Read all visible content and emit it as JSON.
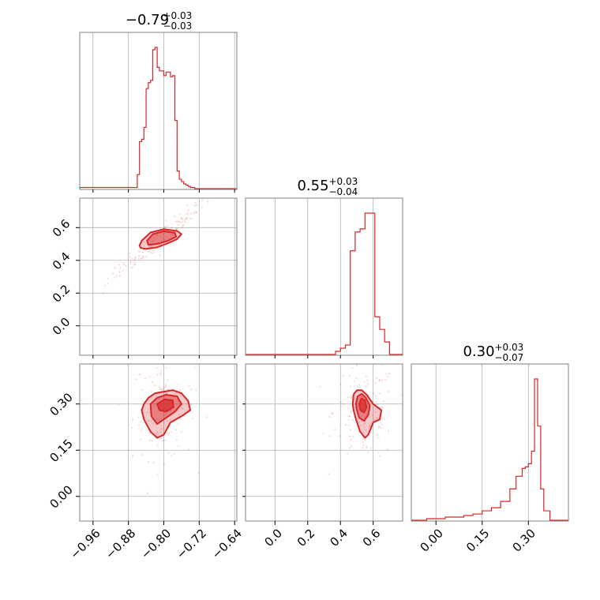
{
  "chart_data": {
    "type": "corner",
    "color": "#d62728",
    "parameters": [
      {
        "ticks": [
          -0.96,
          -0.88,
          -0.8,
          -0.72,
          -0.64
        ],
        "tick_labels": [
          "−0.96",
          "−0.88",
          "−0.80",
          "−0.72",
          "−0.64"
        ],
        "range": [
          -0.99,
          -0.635
        ]
      },
      {
        "ticks": [
          0.0,
          0.2,
          0.4,
          0.6
        ],
        "tick_labels": [
          "0.0",
          "0.2",
          "0.4",
          "0.6"
        ],
        "range": [
          -0.18,
          0.78
        ]
      },
      {
        "ticks": [
          0.0,
          0.15,
          0.3
        ],
        "tick_labels": [
          "0.00",
          "0.15",
          "0.30"
        ],
        "range": [
          -0.08,
          0.43
        ]
      }
    ],
    "titles": [
      {
        "median": "−0.79",
        "upper": "+0.03",
        "lower": "−0.03"
      },
      {
        "median": "0.55",
        "upper": "+0.03",
        "lower": "−0.04"
      },
      {
        "median": "0.30",
        "upper": "+0.03",
        "lower": "−0.07"
      }
    ],
    "histograms": [
      {
        "edges": [
          -0.99,
          -0.86,
          -0.855,
          -0.85,
          -0.845,
          -0.84,
          -0.835,
          -0.83,
          -0.825,
          -0.82,
          -0.815,
          -0.81,
          -0.805,
          -0.8,
          -0.795,
          -0.79,
          -0.785,
          -0.78,
          -0.775,
          -0.77,
          -0.765,
          -0.76,
          -0.755,
          -0.75,
          -0.745,
          -0.74,
          -0.735,
          -0.73,
          -0.725,
          -0.72,
          -0.715,
          -0.71,
          -0.705,
          -0.635
        ],
        "counts": [
          1,
          12,
          40,
          42,
          52,
          85,
          90,
          92,
          118,
          120,
          103,
          100,
          100,
          96,
          99,
          99,
          95,
          96,
          58,
          15,
          8,
          6,
          4,
          3,
          2,
          1,
          1,
          0,
          0,
          0,
          0,
          0,
          0
        ]
      },
      {
        "edges": [
          -0.18,
          0.37,
          0.4,
          0.43,
          0.46,
          0.49,
          0.52,
          0.55,
          0.58,
          0.61,
          0.64,
          0.67,
          0.7,
          0.78
        ],
        "counts": [
          0,
          1,
          2,
          3,
          33,
          39,
          40,
          45,
          45,
          12,
          8,
          4,
          0
        ]
      },
      {
        "edges": [
          -0.08,
          -0.03,
          0.0,
          0.03,
          0.06,
          0.09,
          0.12,
          0.15,
          0.18,
          0.21,
          0.24,
          0.26,
          0.28,
          0.29,
          0.3,
          0.31,
          0.32,
          0.33,
          0.34,
          0.35,
          0.37,
          0.43
        ],
        "counts": [
          0,
          1,
          1,
          2,
          2,
          3,
          4,
          6,
          8,
          12,
          20,
          28,
          33,
          34,
          36,
          44,
          90,
          60,
          20,
          6,
          0
        ]
      }
    ],
    "contours": [
      {
        "xpar": 0,
        "ypar": 1,
        "levels": [
          [
            [
              -0.852,
              0.475
            ],
            [
              -0.84,
              0.47
            ],
            [
              -0.815,
              0.48
            ],
            [
              -0.79,
              0.505
            ],
            [
              -0.77,
              0.53
            ],
            [
              -0.76,
              0.56
            ],
            [
              -0.77,
              0.58
            ],
            [
              -0.8,
              0.59
            ],
            [
              -0.83,
              0.57
            ],
            [
              -0.85,
              0.52
            ],
            [
              -0.855,
              0.49
            ]
          ],
          [
            [
              -0.835,
              0.495
            ],
            [
              -0.815,
              0.5
            ],
            [
              -0.79,
              0.52
            ],
            [
              -0.772,
              0.545
            ],
            [
              -0.775,
              0.568
            ],
            [
              -0.8,
              0.578
            ],
            [
              -0.825,
              0.56
            ],
            [
              -0.838,
              0.52
            ]
          ]
        ]
      },
      {
        "xpar": 0,
        "ypar": 2,
        "levels": [
          [
            [
              -0.845,
              0.3
            ],
            [
              -0.835,
              0.32
            ],
            [
              -0.82,
              0.335
            ],
            [
              -0.8,
              0.34
            ],
            [
              -0.78,
              0.345
            ],
            [
              -0.76,
              0.335
            ],
            [
              -0.745,
              0.31
            ],
            [
              -0.74,
              0.28
            ],
            [
              -0.76,
              0.26
            ],
            [
              -0.785,
              0.24
            ],
            [
              -0.8,
              0.2
            ],
            [
              -0.815,
              0.19
            ],
            [
              -0.83,
              0.21
            ],
            [
              -0.845,
              0.25
            ],
            [
              -0.85,
              0.28
            ]
          ],
          [
            [
              -0.83,
              0.3
            ],
            [
              -0.815,
              0.32
            ],
            [
              -0.795,
              0.33
            ],
            [
              -0.77,
              0.325
            ],
            [
              -0.76,
              0.3
            ],
            [
              -0.775,
              0.275
            ],
            [
              -0.795,
              0.255
            ],
            [
              -0.815,
              0.235
            ],
            [
              -0.828,
              0.26
            ]
          ],
          [
            [
              -0.815,
              0.3
            ],
            [
              -0.798,
              0.315
            ],
            [
              -0.78,
              0.312
            ],
            [
              -0.778,
              0.29
            ],
            [
              -0.795,
              0.275
            ],
            [
              -0.81,
              0.28
            ]
          ]
        ]
      },
      {
        "xpar": 1,
        "ypar": 2,
        "levels": [
          [
            [
              0.475,
              0.3
            ],
            [
              0.48,
              0.33
            ],
            [
              0.5,
              0.345
            ],
            [
              0.53,
              0.345
            ],
            [
              0.56,
              0.33
            ],
            [
              0.6,
              0.3
            ],
            [
              0.65,
              0.28
            ],
            [
              0.64,
              0.25
            ],
            [
              0.6,
              0.24
            ],
            [
              0.57,
              0.2
            ],
            [
              0.55,
              0.19
            ],
            [
              0.52,
              0.21
            ],
            [
              0.495,
              0.25
            ],
            [
              0.48,
              0.28
            ]
          ],
          [
            [
              0.495,
              0.3
            ],
            [
              0.505,
              0.325
            ],
            [
              0.53,
              0.333
            ],
            [
              0.555,
              0.32
            ],
            [
              0.58,
              0.295
            ],
            [
              0.57,
              0.265
            ],
            [
              0.545,
              0.245
            ],
            [
              0.515,
              0.255
            ],
            [
              0.5,
              0.28
            ]
          ],
          [
            [
              0.515,
              0.3
            ],
            [
              0.528,
              0.318
            ],
            [
              0.55,
              0.312
            ],
            [
              0.56,
              0.29
            ],
            [
              0.545,
              0.272
            ],
            [
              0.522,
              0.28
            ]
          ]
        ]
      }
    ]
  }
}
